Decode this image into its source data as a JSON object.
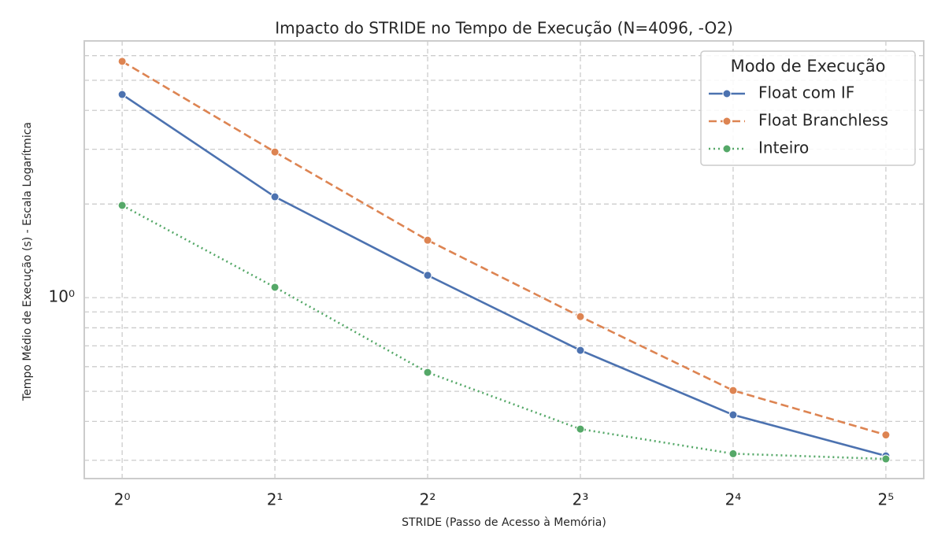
{
  "chart_data": {
    "type": "line",
    "title": "Impacto do STRIDE no Tempo de Execução (N=4096, -O2)",
    "x_label": "STRIDE (Passo de Acesso à Memória)",
    "y_label": "Tempo Médio de Execução (s) - Escala Logarítmica",
    "x": [
      1,
      2,
      4,
      8,
      16,
      32
    ],
    "series": [
      {
        "name": "Float com IF",
        "color": "#4c72b0",
        "linestyle": "solid",
        "values": [
          4.5,
          2.11,
          1.18,
          0.677,
          0.42,
          0.31
        ]
      },
      {
        "name": "Float Branchless",
        "color": "#dd8452",
        "linestyle": "dashed",
        "values": [
          5.75,
          2.94,
          1.53,
          0.869,
          0.503,
          0.362
        ]
      },
      {
        "name": "Inteiro",
        "color": "#55a868",
        "linestyle": "dotted",
        "values": [
          1.98,
          1.08,
          0.575,
          0.378,
          0.315,
          0.303
        ]
      }
    ],
    "legend_title": "Modo de Execução",
    "legend_position": "upper-right",
    "xscale": "log2",
    "yscale": "log10",
    "xlim": [
      0.842,
      38
    ],
    "ylim": [
      0.262,
      6.69
    ],
    "xticks": [
      {
        "value": 1,
        "label": "2⁰"
      },
      {
        "value": 2,
        "label": "2¹"
      },
      {
        "value": 4,
        "label": "2²"
      },
      {
        "value": 8,
        "label": "2³"
      },
      {
        "value": 16,
        "label": "2⁴"
      },
      {
        "value": 32,
        "label": "2⁵"
      }
    ],
    "yticks": [
      {
        "value": 1,
        "label": "10⁰"
      }
    ],
    "yminorticks": [
      0.3,
      0.4,
      0.5,
      0.6,
      0.7,
      0.8,
      0.9,
      2,
      3,
      4,
      5,
      6
    ],
    "grid": true
  }
}
